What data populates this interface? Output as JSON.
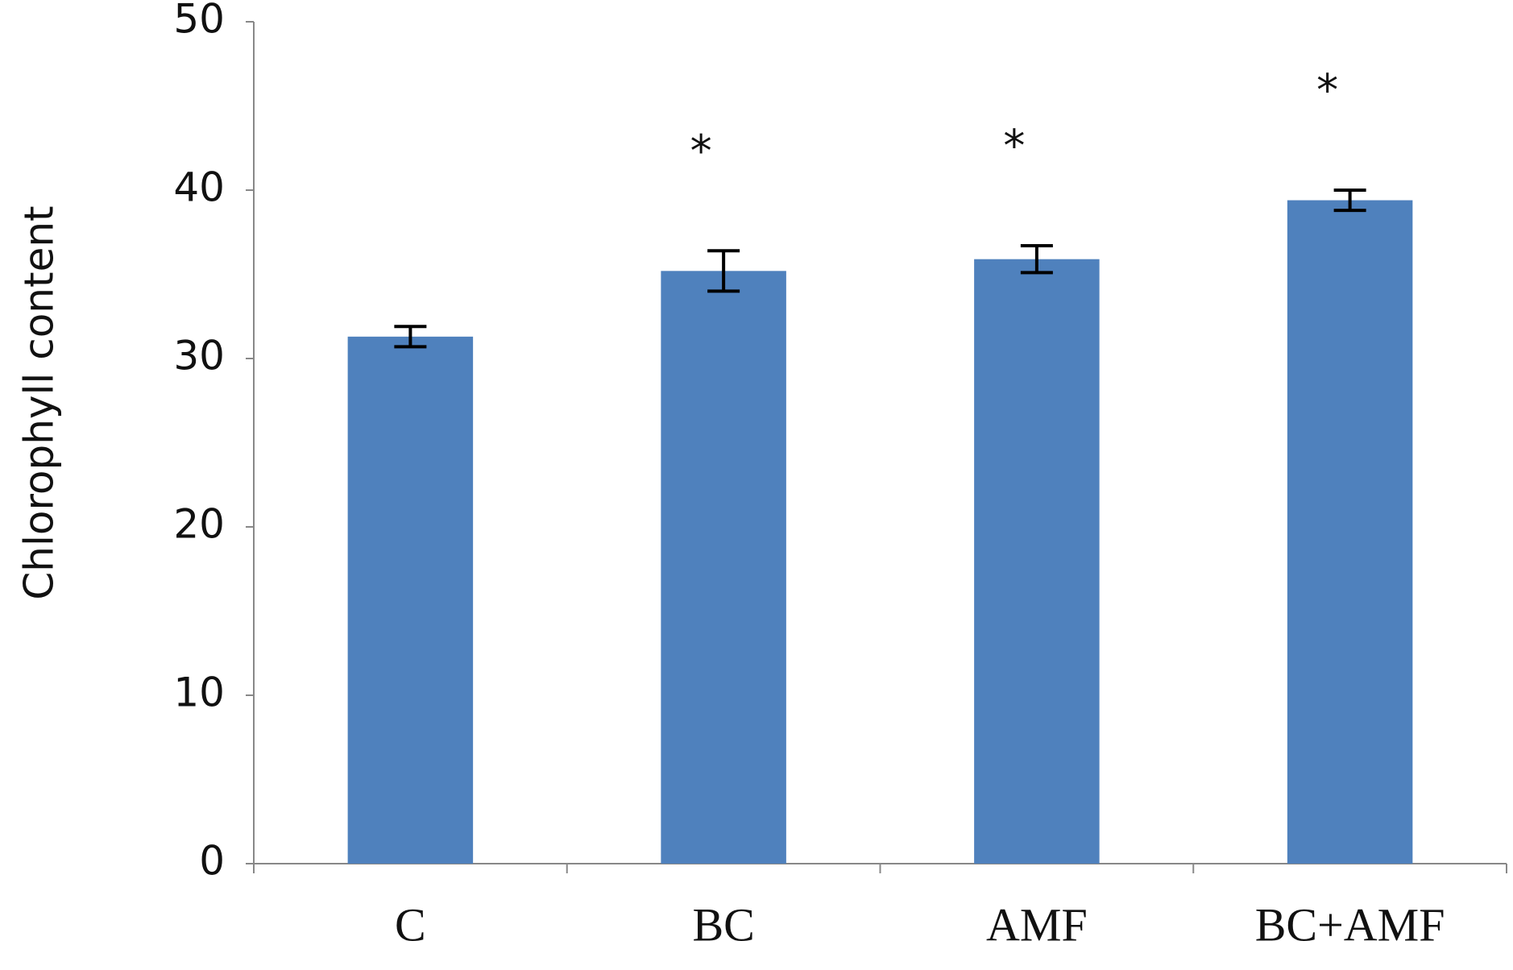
{
  "chart_data": {
    "type": "bar",
    "y_label": "Chlorophyll content",
    "categories": [
      "C",
      "BC",
      "AMF",
      "BC+AMF"
    ],
    "values": [
      31.3,
      35.2,
      35.9,
      39.4
    ],
    "errors": [
      0.6,
      1.2,
      0.8,
      0.6
    ],
    "annotations": [
      null,
      "*",
      "*",
      "*"
    ],
    "color": "#4f81bd",
    "ylim": [
      0,
      50
    ],
    "yticks": [
      0,
      10,
      20,
      30,
      40,
      50
    ],
    "grid": false
  }
}
